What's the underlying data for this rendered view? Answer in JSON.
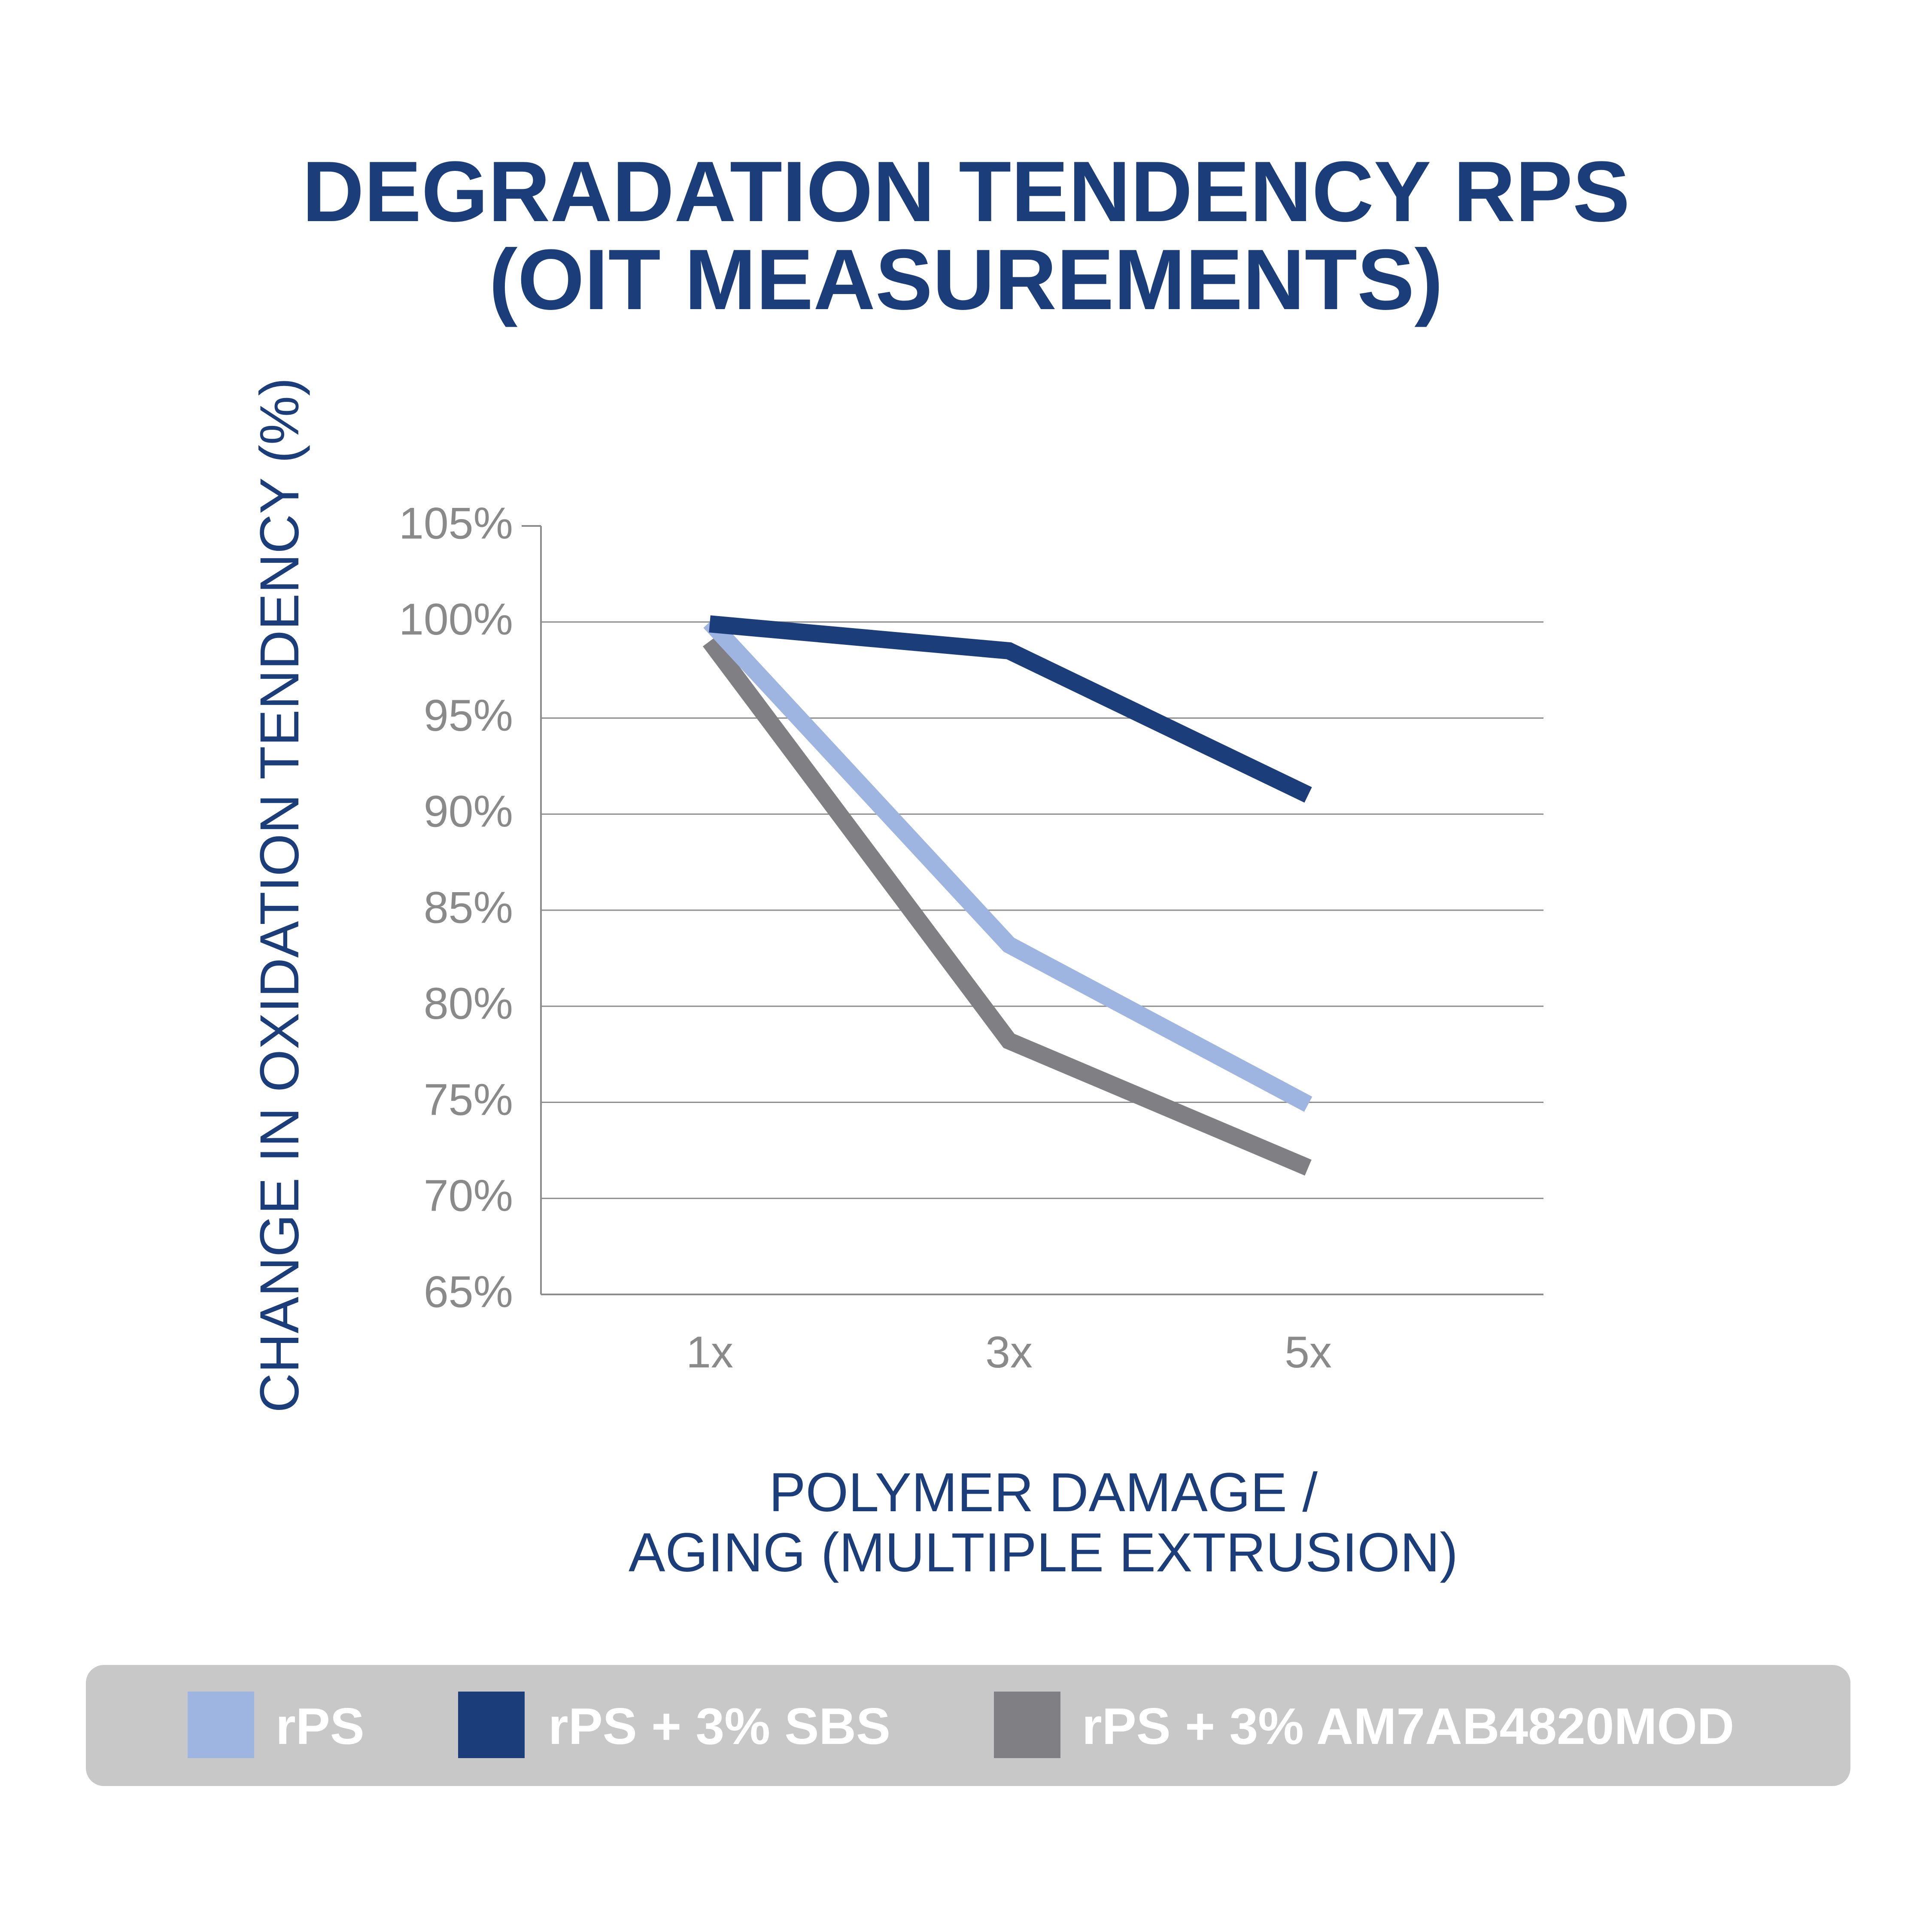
{
  "chart_data": {
    "type": "line",
    "title_lines": [
      "DEGRADATION TENDENCY RPS",
      "(OIT MEASUREMENTS)"
    ],
    "ylabel": "CHANGE IN OXIDATION TENDENCY (%)",
    "xlabel_lines": [
      "POLYMER DAMAGE /",
      "AGING (MULTIPLE EXTRUSION)"
    ],
    "categories": [
      "1x",
      "3x",
      "5x"
    ],
    "y_ticks": [
      {
        "value": 105,
        "label": "105%"
      },
      {
        "value": 100,
        "label": "100%"
      },
      {
        "value": 95,
        "label": "95%"
      },
      {
        "value": 90,
        "label": "90%"
      },
      {
        "value": 85,
        "label": "85%"
      },
      {
        "value": 80,
        "label": "80%"
      },
      {
        "value": 75,
        "label": "75%"
      },
      {
        "value": 70,
        "label": "70%"
      },
      {
        "value": 65,
        "label": "65%"
      }
    ],
    "ylim": [
      65,
      105
    ],
    "grid_values": [
      70,
      75,
      80,
      85,
      90,
      95,
      100
    ],
    "series": [
      {
        "name": "rPS",
        "color": "#9db5e0",
        "values": [
          100,
          83.2,
          74.9
        ]
      },
      {
        "name": "rPS + 3% SBS",
        "color": "#1b3d7a",
        "values": [
          99.9,
          98.5,
          91.0
        ]
      },
      {
        "name": "rPS + 3% AM7AB4820MOD",
        "color": "#7f7f84",
        "values": [
          99,
          78.2,
          71.6
        ]
      }
    ],
    "draw_order": [
      2,
      0,
      1
    ],
    "legend_position": "bottom"
  },
  "colors": {
    "title": "#1b3d7a",
    "tick": "#8a8a8a",
    "grid": "#8c8c8c",
    "legend_bg": "#c8c8c8"
  }
}
